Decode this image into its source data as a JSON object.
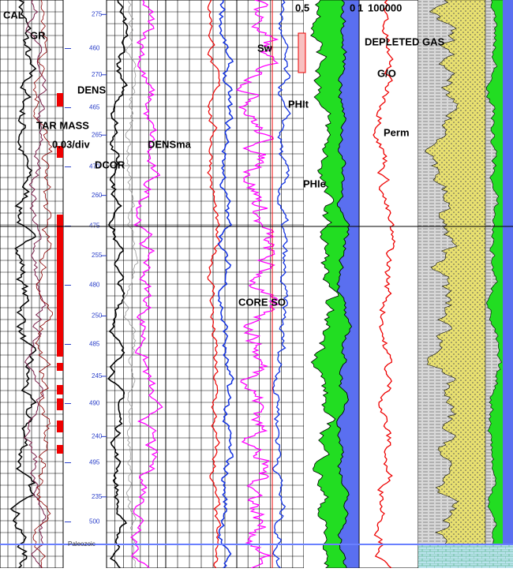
{
  "track_labels": {
    "cal": "CAL",
    "gr": "GR",
    "dens": "DENS",
    "tar_mass": "TAR MASS",
    "tar_scale": "0.03/div",
    "dcor": "DCOR",
    "densma": "DENSma",
    "sw": "Sw",
    "phit": "PHIt",
    "phie": "PHIe",
    "core_so": "CORE SO",
    "sw_scale": "0.5",
    "perm_min": "0",
    "perm_mid": "1",
    "perm_max": "100000",
    "depleted_gas": "DEPLETED GAS",
    "go": "G/O",
    "perm": "Perm",
    "paleozoic": "Paleozoic"
  },
  "depth": {
    "range": [
      455.9,
      503.9
    ],
    "ticks": [
      460,
      465,
      470,
      475,
      480,
      485,
      490,
      495,
      500
    ]
  },
  "depth2": {
    "range": [
      276.2,
      229.1
    ],
    "ticks": [
      275,
      270,
      265,
      260,
      255,
      250,
      245,
      240,
      235
    ]
  }
}
